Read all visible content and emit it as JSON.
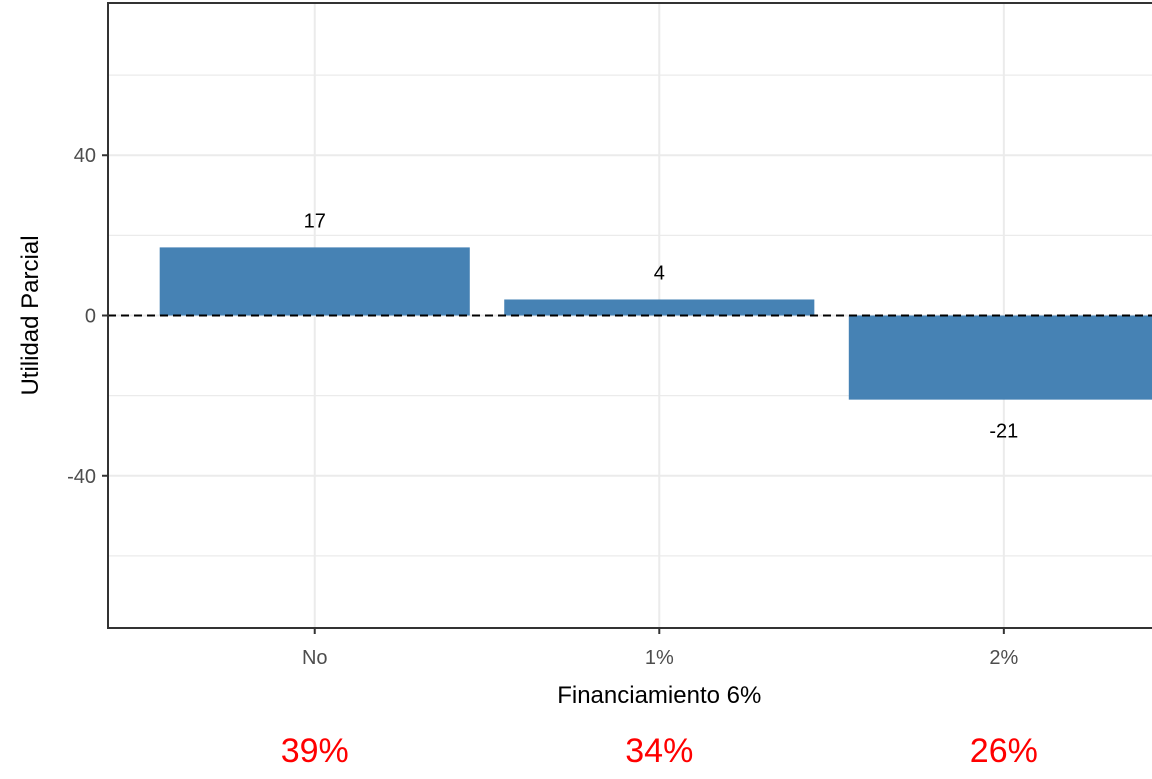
{
  "chart_data": {
    "type": "bar",
    "categories": [
      "No",
      "1%",
      "2%"
    ],
    "values": [
      17,
      4,
      -21
    ],
    "value_labels": [
      "17",
      "4",
      "-21"
    ],
    "xlabel": "Financiamiento 6%",
    "ylabel": "Utilidad Parcial",
    "ylim": [
      -78,
      78
    ],
    "yticks": [
      -40,
      0,
      40
    ],
    "ytick_labels": [
      "-40",
      "0",
      "40"
    ],
    "reference_line": 0,
    "grid": true,
    "bar_color": "#4682B4",
    "share_labels": [
      "39%",
      "34%",
      "26%"
    ],
    "share_color": "#FF0000"
  }
}
